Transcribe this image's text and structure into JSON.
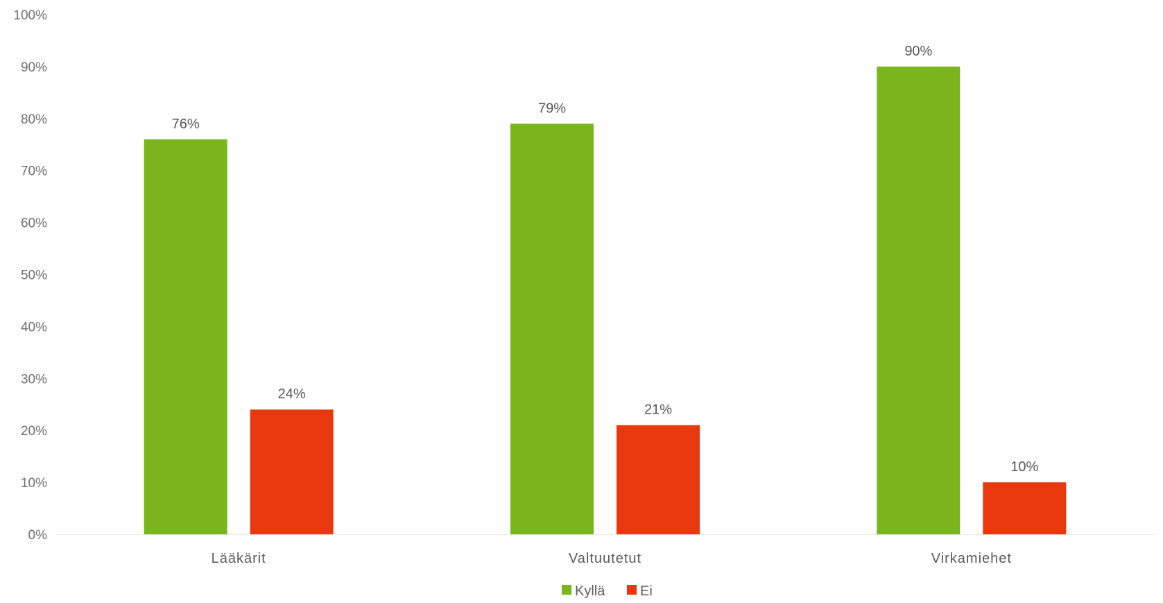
{
  "chart_data": {
    "type": "bar",
    "categories": [
      "Lääkärit",
      "Valtuutetut",
      "Virkamiehet"
    ],
    "series": [
      {
        "name": "Kyllä",
        "values": [
          76,
          79,
          90
        ],
        "color": "#7ab51d",
        "data_labels": [
          "76%",
          "79%",
          "90%"
        ]
      },
      {
        "name": "Ei",
        "values": [
          24,
          21,
          10
        ],
        "color": "#e8380d",
        "data_labels": [
          "24%",
          "21%",
          "10%"
        ]
      }
    ],
    "y_ticks": [
      "0%",
      "10%",
      "20%",
      "30%",
      "40%",
      "50%",
      "60%",
      "70%",
      "80%",
      "90%",
      "100%"
    ],
    "ylim": [
      0,
      100
    ],
    "grid": false,
    "legend_position": "bottom-center",
    "title": "",
    "xlabel": "",
    "ylabel": ""
  }
}
